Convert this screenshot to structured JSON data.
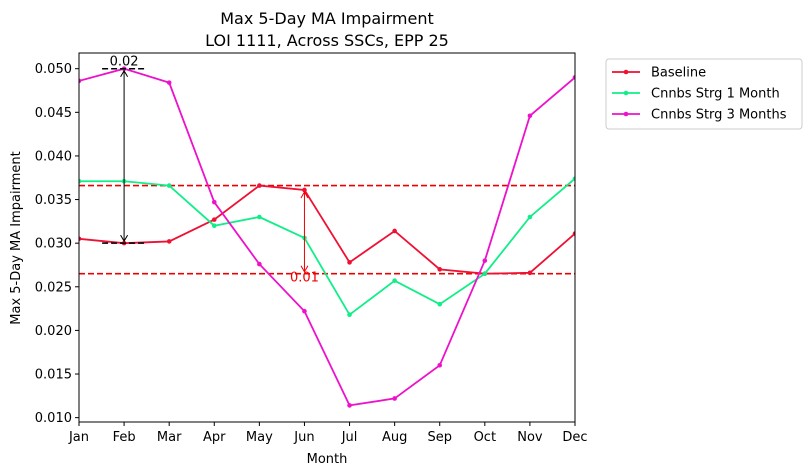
{
  "chart_data": {
    "type": "line",
    "title": "Max 5-Day MA Impairment",
    "subtitle": "LOI 1111, Across SSCs, EPP 25",
    "xlabel": "Month",
    "ylabel": "Max 5-Day MA Impairment",
    "categories": [
      "Jan",
      "Feb",
      "Mar",
      "Apr",
      "May",
      "Jun",
      "Jul",
      "Aug",
      "Sep",
      "Oct",
      "Nov",
      "Dec"
    ],
    "ylim": [
      0.0095,
      0.0518
    ],
    "yticks": [
      "0.010",
      "0.015",
      "0.020",
      "0.025",
      "0.030",
      "0.035",
      "0.040",
      "0.045",
      "0.050"
    ],
    "grid": false,
    "legend_position": "outside-top-right",
    "series": [
      {
        "name": "Baseline",
        "color": "#ee1133",
        "values": [
          0.0305,
          0.03,
          0.0302,
          0.0327,
          0.0366,
          0.0361,
          0.0278,
          0.0314,
          0.027,
          0.0265,
          0.0266,
          0.0311
        ]
      },
      {
        "name": "Cnnbs Strg 1 Month",
        "color": "#11ee88",
        "values": [
          0.0371,
          0.0371,
          0.0366,
          0.032,
          0.033,
          0.0306,
          0.0218,
          0.0257,
          0.023,
          0.0265,
          0.033,
          0.0374
        ]
      },
      {
        "name": "Cnnbs Strg 3 Months",
        "color": "#ee11cc",
        "values": [
          0.0486,
          0.05,
          0.0484,
          0.0347,
          0.0276,
          0.0222,
          0.0114,
          0.0122,
          0.016,
          0.028,
          0.0446,
          0.049
        ]
      }
    ],
    "reference_lines": [
      {
        "y": 0.0366,
        "color": "#ee0000",
        "style": "dashed"
      },
      {
        "y": 0.0265,
        "color": "#ee0000",
        "style": "dashed"
      }
    ],
    "annotations": [
      {
        "label": "0.02",
        "x": "Feb",
        "y_from": 0.05,
        "y_to": 0.03,
        "color": "#000000"
      },
      {
        "label": "0.01",
        "x": "Jun",
        "y_from": 0.0361,
        "y_to": 0.0265,
        "color": "#ee0000"
      }
    ]
  }
}
